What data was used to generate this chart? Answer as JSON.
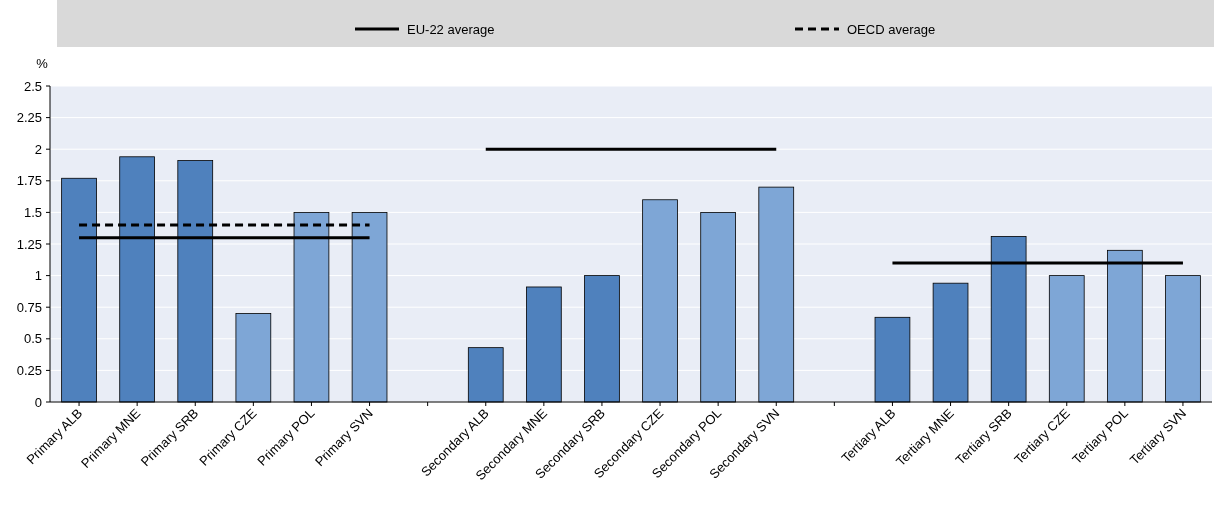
{
  "chart_data": {
    "type": "bar",
    "ylabel": "%",
    "categories": [
      "Primary ALB",
      "Primary MNE",
      "Primary SRB",
      "Primary CZE",
      "Primary POL",
      "Primary SVN",
      null,
      "Secondary ALB",
      "Secondary MNE",
      "Secondary SRB",
      "Secondary CZE",
      "Secondary POL",
      "Secondary SVN",
      null,
      "Tertiary ALB",
      "Tertiary MNE",
      "Tertiary SRB",
      "Tertiary CZE",
      "Tertiary POL",
      "Tertiary SVN"
    ],
    "series": [
      {
        "colors": [
          "#4f81bd",
          "#4f81bd",
          "#4f81bd",
          "#7ea6d6",
          "#7ea6d6",
          "#7ea6d6",
          null,
          "#4f81bd",
          "#4f81bd",
          "#4f81bd",
          "#7ea6d6",
          "#7ea6d6",
          "#7ea6d6",
          null,
          "#4f81bd",
          "#4f81bd",
          "#4f81bd",
          "#7ea6d6",
          "#7ea6d6",
          "#7ea6d6"
        ],
        "values": [
          1.77,
          1.94,
          1.91,
          0.7,
          1.5,
          1.5,
          null,
          0.43,
          0.91,
          1.0,
          1.6,
          1.5,
          1.7,
          null,
          0.67,
          0.94,
          1.31,
          1.0,
          1.2,
          1.0
        ]
      },
      {
        "type": "line",
        "name": "EU-22 average",
        "color": "#000000",
        "line_style": "solid",
        "values": [
          1.3,
          1.3,
          1.3,
          1.3,
          1.3,
          1.3,
          null,
          2,
          2,
          2,
          2,
          2,
          2,
          null,
          1.1,
          1.1,
          1.1,
          1.1,
          1.1,
          1.1
        ]
      },
      {
        "type": "line",
        "name": "OECD average",
        "color": "#000000",
        "line_style": "dashed",
        "values": [
          1.4,
          1.4,
          1.4,
          1.4,
          1.4,
          1.4,
          null,
          null,
          null,
          null,
          null,
          null,
          null,
          null,
          null,
          null,
          null,
          null,
          null,
          null
        ]
      }
    ],
    "ylim": [
      0,
      2.5
    ],
    "yticks": [
      0,
      0.25,
      0.5,
      0.75,
      1,
      1.25,
      1.5,
      1.75,
      2,
      2.25,
      2.5
    ],
    "grid": "y",
    "legend": "top"
  }
}
